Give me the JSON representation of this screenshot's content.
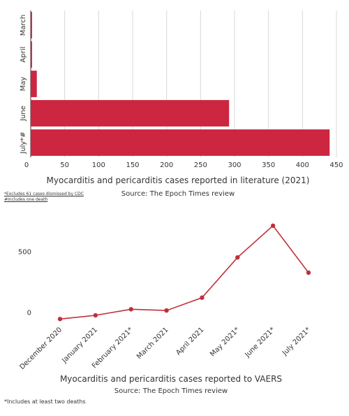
{
  "colors": {
    "bar": "#cc2640",
    "line": "#c0303a",
    "grid": "#d8d8d8",
    "axis": "#333333"
  },
  "chart_data": [
    {
      "type": "bar",
      "orientation": "horizontal",
      "categories": [
        "March",
        "April",
        "May",
        "June",
        "July*#"
      ],
      "values": [
        2,
        2,
        9,
        292,
        440
      ],
      "xlim": [
        0,
        450
      ],
      "xticks": [
        0,
        50,
        100,
        150,
        200,
        250,
        300,
        350,
        400,
        450
      ],
      "title": "Myocarditis and pericarditis cases reported in literature (2021)",
      "subtitle": "Source: The Epoch Times review",
      "grid": true,
      "notes": [
        "*Excludes 61 cases dismissed by CDC",
        "#Includes one death"
      ]
    },
    {
      "type": "line",
      "categories": [
        "December 2020",
        "January 2021",
        "February 2021*",
        "March 2021",
        "April 2021",
        "May 2021*",
        "June 2021*",
        "July 2021*"
      ],
      "values": [
        -50,
        -20,
        30,
        20,
        125,
        455,
        715,
        330
      ],
      "ylim": [
        -100,
        800
      ],
      "yticks": [
        0,
        500
      ],
      "title": "Myocarditis and pericarditis cases reported to VAERS",
      "subtitle": "Source: The Epoch Times review",
      "grid": false,
      "notes": [
        "*Includes at least two deaths"
      ]
    }
  ]
}
